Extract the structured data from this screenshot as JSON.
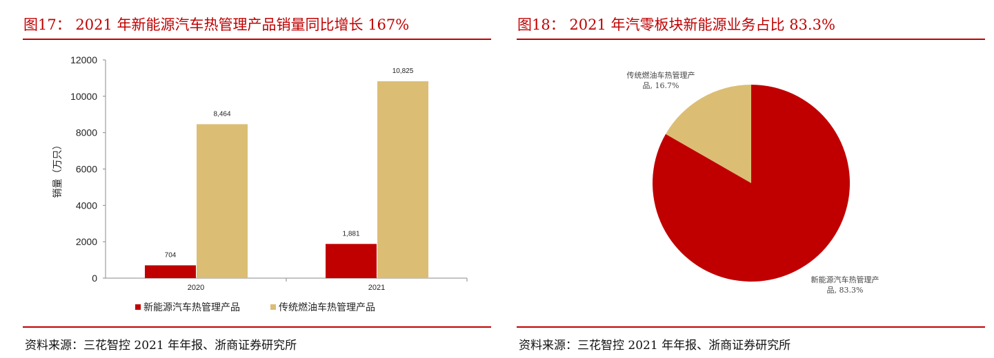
{
  "colors": {
    "accent": "#c00000",
    "nev": "#c00000",
    "ice": "#dbbe74"
  },
  "left": {
    "title": "图17：  2021 年新能源汽车热管理产品销量同比增长 167%",
    "source": "资料来源：三花智控 2021 年年报、浙商证券研究所"
  },
  "right": {
    "title": "图18：  2021 年汽零板块新能源业务占比 83.3%",
    "source": "资料来源：三花智控 2021 年年报、浙商证券研究所"
  },
  "chart_data": [
    {
      "type": "bar",
      "categories": [
        "2020",
        "2021"
      ],
      "series": [
        {
          "name": "新能源汽车热管理产品",
          "values": [
            704,
            1881
          ],
          "labels": [
            "704",
            "1,881"
          ]
        },
        {
          "name": "传统燃油车热管理产品",
          "values": [
            8464,
            10825
          ],
          "labels": [
            "8,464",
            "10,825"
          ]
        }
      ],
      "ylabel": "销量（万只）",
      "ylim": [
        0,
        12000
      ],
      "yticks": [
        0,
        2000,
        4000,
        6000,
        8000,
        10000,
        12000
      ],
      "legend": "bottom",
      "grid": false
    },
    {
      "type": "pie",
      "slices": [
        {
          "name": "传统燃油车热管理产品",
          "value": 16.7,
          "label_line1": "传统燃油车热管理产",
          "label_line2": "品, 16.7%"
        },
        {
          "name": "新能源汽车热管理产品",
          "value": 83.3,
          "label_line1": "新能源汽车热管理产",
          "label_line2": "品, 83.3%"
        }
      ]
    }
  ]
}
